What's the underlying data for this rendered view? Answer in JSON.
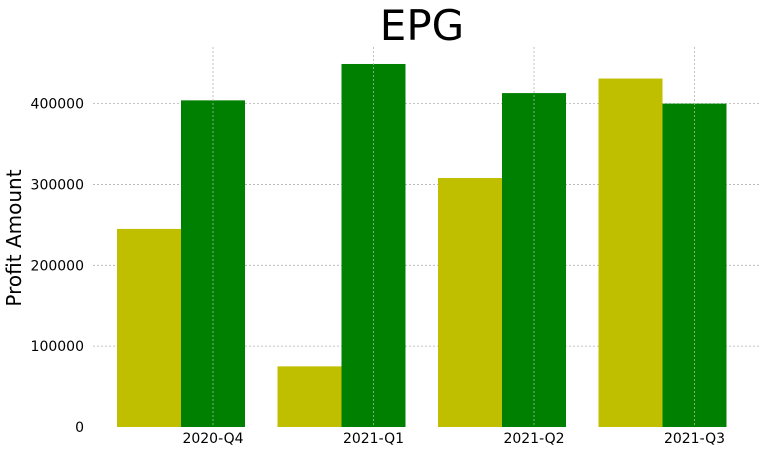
{
  "chart_data": {
    "type": "bar",
    "title": "EPG",
    "xlabel": "",
    "ylabel": "Profit Amount",
    "categories": [
      "2020-Q4",
      "2021-Q1",
      "2021-Q2",
      "2021-Q3"
    ],
    "series": [
      {
        "values": [
          245000,
          75000,
          308000,
          431000
        ],
        "color": "#bfbf00"
      },
      {
        "values": [
          404000,
          449000,
          413000,
          400000
        ],
        "color": "#008000"
      }
    ],
    "ylim": [
      0,
      470000
    ],
    "yticks": [
      0,
      100000,
      200000,
      300000,
      400000
    ],
    "ytick_labels": [
      "0",
      "100000",
      "200000",
      "300000",
      "400000"
    ],
    "grid": true,
    "legend": "none"
  }
}
